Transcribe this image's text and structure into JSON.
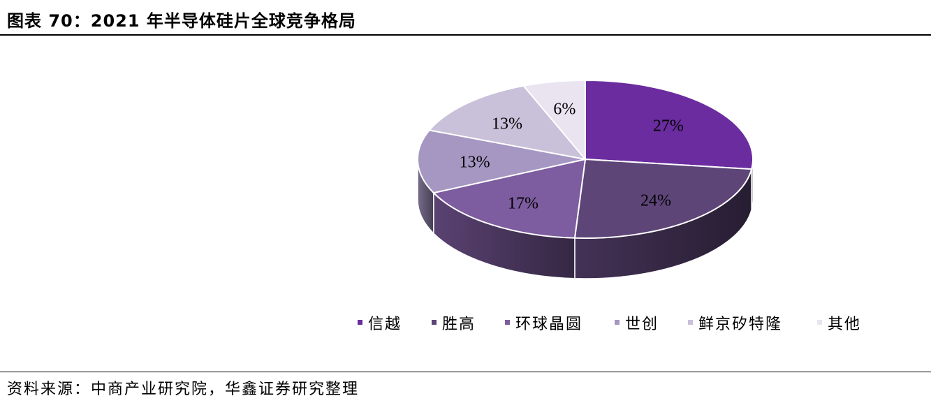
{
  "figure": {
    "title": "图表 70：2021 年半导体硅片全球竞争格局",
    "source": "资料来源：中商产业研究院，华鑫证券研究整理"
  },
  "chart_data": {
    "type": "pie",
    "style": "3d",
    "title": "",
    "legend_position": "bottom",
    "categories": [
      "信越",
      "胜高",
      "环球晶圆",
      "世创",
      "鲜京矽特隆",
      "其他"
    ],
    "values": [
      27,
      24,
      17,
      13,
      13,
      6
    ],
    "value_labels": [
      "27%",
      "24%",
      "17%",
      "13%",
      "13%",
      "6%"
    ],
    "colors": [
      "#6A2C9E",
      "#5E4578",
      "#7D5C9F",
      "#A597C2",
      "#C9C0D9",
      "#E9E4F0"
    ]
  }
}
